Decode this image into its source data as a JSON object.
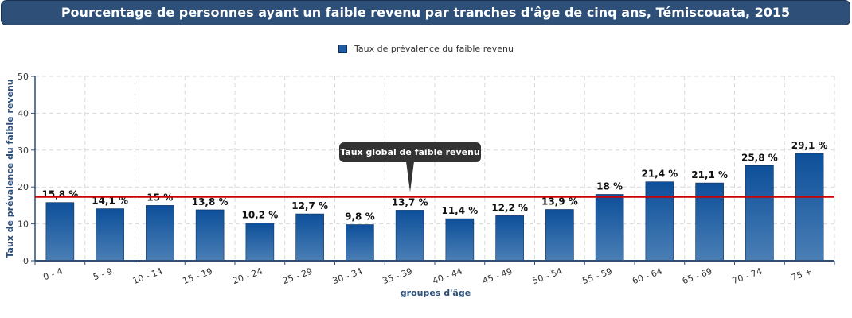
{
  "title": "Pourcentage de personnes ayant un faible revenu par tranches d'âge de cinq ans, Témiscouata, 2015",
  "legend": {
    "label": "Taux de prévalence du faible revenu"
  },
  "reference_line": {
    "label": "Taux global de faible revenu",
    "value": 17.3,
    "color": "#cc0000"
  },
  "colors": {
    "bar_top": "#0d4f9a",
    "bar_bottom": "#4a7fb5",
    "bar_border": "#0d2e57",
    "axis": "#2d4f78",
    "grid": "#d9d9d9"
  },
  "chart_data": {
    "type": "bar",
    "title": "Pourcentage de personnes ayant un faible revenu par tranches d'âge de cinq ans, Témiscouata, 2015",
    "xlabel": "groupes d'âge",
    "ylabel": "Taux de prévalence du faible revenu",
    "ylim": [
      0,
      50
    ],
    "yticks": [
      0,
      10,
      20,
      30,
      40,
      50
    ],
    "grid": true,
    "legend_position": "top-center",
    "categories": [
      "0 - 4",
      "5 - 9",
      "10 - 14",
      "15 - 19",
      "20 - 24",
      "25 - 29",
      "30 - 34",
      "35 - 39",
      "40 - 44",
      "45 - 49",
      "50 - 54",
      "55 - 59",
      "60 - 64",
      "65 - 69",
      "70 - 74",
      "75 +"
    ],
    "series": [
      {
        "name": "Taux de prévalence du faible revenu",
        "values": [
          15.8,
          14.1,
          15,
          13.8,
          10.2,
          12.7,
          9.8,
          13.7,
          11.4,
          12.2,
          13.9,
          18,
          21.4,
          21.1,
          25.8,
          29.1
        ],
        "labels": [
          "15,8 %",
          "14,1 %",
          "15 %",
          "13,8 %",
          "10,2 %",
          "12,7 %",
          "9,8 %",
          "13,7 %",
          "11,4 %",
          "12,2 %",
          "13,9 %",
          "18 %",
          "21,4 %",
          "21,1 %",
          "25,8 %",
          "29,1 %"
        ]
      }
    ]
  }
}
